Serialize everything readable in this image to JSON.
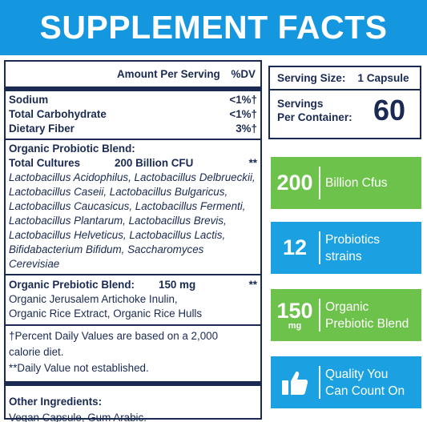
{
  "banner": {
    "title": "SUPPLEMENT FACTS"
  },
  "facts": {
    "header": {
      "amount_per_serving": "Amount Per Serving",
      "dv": "%DV"
    },
    "nutrients": [
      {
        "name": "Sodium",
        "dv": "<1%†"
      },
      {
        "name": "Total Carbohydrate",
        "dv": "<1%†"
      },
      {
        "name": "Dietary Fiber",
        "dv": "3%†"
      }
    ],
    "probiotic": {
      "title": "Organic Probiotic Blend:",
      "cultures_label": "Total Cultures",
      "cultures_amount": "200 Billion CFU",
      "cultures_mark": "**",
      "strains": [
        "Lactobacillus Acidophilus, Lactobacillus Delbrueckii,",
        "Lactobacillus Caseii, Lactobacillus Bulgaricus,",
        "Lactobacillus Caucasicus, Lactobacillus Fermenti,",
        "Lactobacillus Plantarum, Lactobacillus Brevis,",
        "Lactobacillus Helveticus, Lactobacillus Lactis,",
        "Bifidabacterium Bifidum, Saccharomyces Cerevisiae"
      ]
    },
    "prebiotic": {
      "title": "Organic Prebiotic Blend:",
      "amount": "150 mg",
      "mark": "**",
      "lines": [
        "Organic Jerusalem Artichoke Inulin,",
        "Organic Rice Extract, Organic Rice Hulls"
      ]
    },
    "notes": [
      "†Percent Daily Values are based on a 2,000",
      "calorie diet.",
      "**Daily Value not established."
    ],
    "other": {
      "title": "Other Ingredients:",
      "text": "Vegan Capsule, Gum Arabic."
    }
  },
  "serving": {
    "size_label": "Serving Size:",
    "size_value": "1 Capsule",
    "servings_label_1": "Servings",
    "servings_label_2": "Per Container:",
    "servings_value": "60"
  },
  "tiles": [
    {
      "big": "200",
      "text_1": "Billion Cfus",
      "text_2": "",
      "color": "#6cc24a"
    },
    {
      "big": "12",
      "text_1": "Probiotics",
      "text_2": "strains",
      "color": "#1ba1e2"
    },
    {
      "big": "150",
      "unit": "mg",
      "text_1": "Organic",
      "text_2": "Prebiotic Blend",
      "color": "#6cc24a"
    },
    {
      "icon": "thumbs-up-icon",
      "text_1": "Quality You",
      "text_2": "Can Count On",
      "color": "#1ba1e2"
    }
  ]
}
